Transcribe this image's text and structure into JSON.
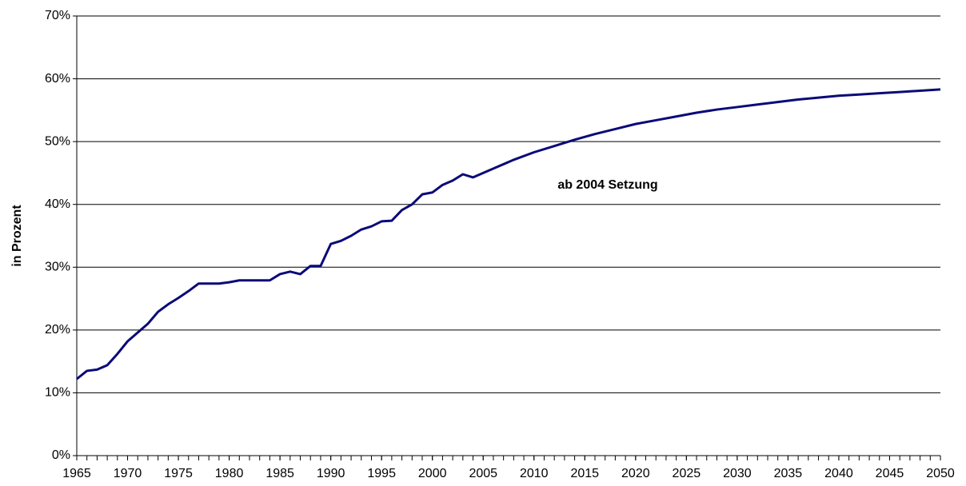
{
  "chart_data": {
    "type": "line",
    "y_label": "in Prozent",
    "annotation": "ab 2004 Setzung",
    "x": [
      1965,
      1966,
      1967,
      1968,
      1969,
      1970,
      1971,
      1972,
      1973,
      1974,
      1975,
      1976,
      1977,
      1978,
      1979,
      1980,
      1981,
      1982,
      1983,
      1984,
      1985,
      1986,
      1987,
      1988,
      1989,
      1990,
      1991,
      1992,
      1993,
      1994,
      1995,
      1996,
      1997,
      1998,
      1999,
      2000,
      2001,
      2002,
      2003,
      2004,
      2006,
      2008,
      2010,
      2012,
      2014,
      2016,
      2018,
      2020,
      2022,
      2024,
      2026,
      2028,
      2030,
      2032,
      2034,
      2036,
      2038,
      2040,
      2042,
      2044,
      2046,
      2048,
      2050
    ],
    "series": [
      {
        "name": "in Prozent",
        "color": "#0a0a78",
        "values": [
          12.2,
          13.5,
          13.7,
          14.4,
          16.2,
          18.2,
          19.6,
          21.0,
          22.9,
          24.1,
          25.1,
          26.2,
          27.4,
          27.4,
          27.4,
          27.6,
          27.9,
          27.9,
          27.9,
          27.9,
          28.9,
          29.3,
          28.9,
          30.2,
          30.2,
          33.7,
          34.2,
          35.0,
          36.0,
          36.5,
          37.3,
          37.4,
          39.1,
          40.0,
          41.6,
          41.9,
          43.1,
          43.8,
          44.8,
          44.3,
          45.7,
          47.1,
          48.3,
          49.3,
          50.3,
          51.2,
          52.0,
          52.8,
          53.4,
          54.0,
          54.6,
          55.1,
          55.5,
          55.9,
          56.3,
          56.7,
          57.0,
          57.3,
          57.5,
          57.7,
          57.9,
          58.1,
          58.3
        ]
      }
    ],
    "xlim": [
      1965,
      2050
    ],
    "xticks": [
      1965,
      1970,
      1975,
      1980,
      1985,
      1990,
      1995,
      2000,
      2005,
      2010,
      2015,
      2020,
      2025,
      2030,
      2035,
      2040,
      2045,
      2050
    ],
    "ylim": [
      0,
      70
    ],
    "yticks": [
      {
        "value": 0,
        "label": "0%"
      },
      {
        "value": 10,
        "label": "10%"
      },
      {
        "value": 20,
        "label": "20%"
      },
      {
        "value": 30,
        "label": "30%"
      },
      {
        "value": 40,
        "label": "40%"
      },
      {
        "value": 50,
        "label": "50%"
      },
      {
        "value": 60,
        "label": "60%"
      },
      {
        "value": 70,
        "label": "70%"
      }
    ],
    "grid": true
  }
}
